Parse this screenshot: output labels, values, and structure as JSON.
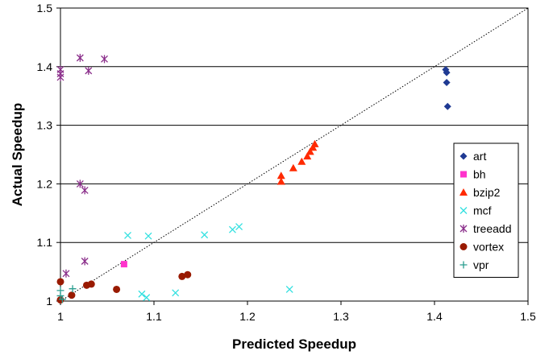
{
  "chart_data": {
    "type": "scatter",
    "title": "",
    "xlabel": "Predicted Speedup",
    "ylabel": "Actual Speedup",
    "xlim": [
      1,
      1.5
    ],
    "ylim": [
      1,
      1.5
    ],
    "x_ticks": [
      1,
      1.1,
      1.2,
      1.3,
      1.4,
      1.5
    ],
    "y_ticks": [
      1,
      1.1,
      1.2,
      1.3,
      1.4,
      1.5
    ],
    "x_tick_labels": [
      "1",
      "1.1",
      "1.2",
      "1.3",
      "1.4",
      "1.5"
    ],
    "y_tick_labels": [
      "1",
      "1.1",
      "1.2",
      "1.3",
      "1.4",
      "1.5"
    ],
    "grid": "horizontal",
    "reference_line": {
      "style": "dotted",
      "from": [
        1,
        1
      ],
      "to": [
        1.5,
        1.5
      ]
    },
    "legend_position": "right",
    "series": [
      {
        "name": "art",
        "marker": "diamond",
        "color": "#1f3a93",
        "points": [
          [
            1.412,
            1.395
          ],
          [
            1.413,
            1.39
          ],
          [
            1.413,
            1.373
          ],
          [
            1.414,
            1.332
          ]
        ]
      },
      {
        "name": "bh",
        "marker": "square",
        "color": "#ff33cc",
        "points": [
          [
            1.068,
            1.063
          ]
        ]
      },
      {
        "name": "bzip2",
        "marker": "triangle",
        "color": "#ff2a00",
        "points": [
          [
            1.236,
            1.214
          ],
          [
            1.236,
            1.204
          ],
          [
            1.249,
            1.227
          ],
          [
            1.258,
            1.238
          ],
          [
            1.264,
            1.247
          ],
          [
            1.267,
            1.255
          ],
          [
            1.27,
            1.262
          ],
          [
            1.272,
            1.268
          ]
        ]
      },
      {
        "name": "mcf",
        "marker": "x",
        "color": "#33e0e0",
        "points": [
          [
            1.072,
            1.112
          ],
          [
            1.094,
            1.111
          ],
          [
            1.154,
            1.113
          ],
          [
            1.184,
            1.122
          ],
          [
            1.191,
            1.127
          ],
          [
            1.087,
            1.012
          ],
          [
            1.092,
            1.006
          ],
          [
            1.123,
            1.014
          ],
          [
            1.245,
            1.02
          ]
        ]
      },
      {
        "name": "treeadd",
        "marker": "asterisk",
        "color": "#8b2f8b",
        "points": [
          [
            1.0,
            1.395
          ],
          [
            1.0,
            1.388
          ],
          [
            1.0,
            1.382
          ],
          [
            1.021,
            1.415
          ],
          [
            1.03,
            1.393
          ],
          [
            1.047,
            1.413
          ],
          [
            1.021,
            1.2
          ],
          [
            1.026,
            1.189
          ],
          [
            1.026,
            1.068
          ],
          [
            1.006,
            1.047
          ]
        ]
      },
      {
        "name": "vortex",
        "marker": "circle",
        "color": "#991a00",
        "points": [
          [
            1.0,
            1.033
          ],
          [
            1.012,
            1.01
          ],
          [
            1.028,
            1.027
          ],
          [
            1.033,
            1.029
          ],
          [
            1.06,
            1.02
          ],
          [
            1.13,
            1.042
          ],
          [
            1.136,
            1.045
          ],
          [
            1.0,
            1.002
          ]
        ]
      },
      {
        "name": "vpr",
        "marker": "plus",
        "color": "#2a9d8f",
        "points": [
          [
            1.0,
            1.018
          ],
          [
            1.0,
            1.009
          ],
          [
            1.002,
            1.003
          ],
          [
            1.013,
            1.021
          ]
        ]
      }
    ]
  }
}
